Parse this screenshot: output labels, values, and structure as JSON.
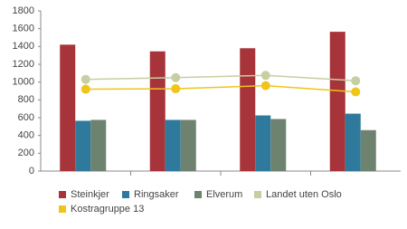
{
  "chart_data": {
    "type": "combo",
    "categories": [
      null,
      null,
      null,
      null
    ],
    "ylim": [
      0,
      1800
    ],
    "yticks": [
      0,
      200,
      400,
      600,
      800,
      1000,
      1200,
      1400,
      1600,
      1800
    ],
    "grid": false,
    "legend": "bottom",
    "series": [
      {
        "name": "Steinkjer",
        "type": "bar",
        "color": "#a6343a",
        "values": [
          1420,
          1345,
          1380,
          1565
        ]
      },
      {
        "name": "Ringsaker",
        "type": "bar",
        "color": "#2f7a9c",
        "values": [
          565,
          575,
          625,
          645
        ]
      },
      {
        "name": "Elverum",
        "type": "bar",
        "color": "#6e836f",
        "values": [
          575,
          575,
          585,
          460
        ]
      },
      {
        "name": "Landet uten Oslo",
        "type": "line",
        "color": "#c5cfa2",
        "values": [
          1030,
          1050,
          1075,
          1015
        ]
      },
      {
        "name": "Kostragruppe 13",
        "type": "line",
        "color": "#f0c419",
        "values": [
          920,
          925,
          960,
          890
        ]
      }
    ]
  }
}
